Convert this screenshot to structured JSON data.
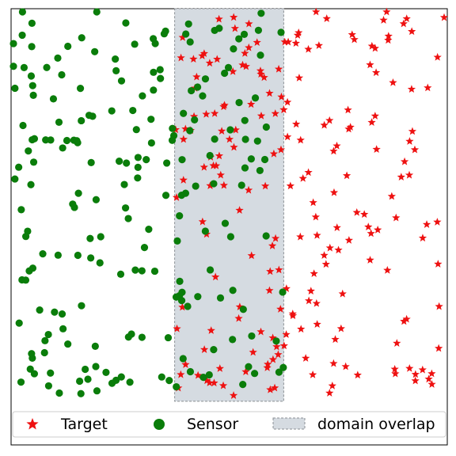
{
  "chart_data": {
    "type": "scatter",
    "title": "",
    "xlabel": "",
    "ylabel": "",
    "xlim": [
      0,
      1
    ],
    "ylim": [
      0,
      1
    ],
    "grid": false,
    "axis_ticks": false,
    "legend_placement": "bottom-center",
    "overlap_region": {
      "x": [
        0.375,
        0.625
      ],
      "y": [
        0.1,
        1.0
      ],
      "name": "domain overlap",
      "fill": "#d5dbe1",
      "edge": "#8a8f94"
    },
    "series": [
      {
        "name": "Target",
        "marker": "star",
        "color": "#ee1111",
        "count": 205,
        "x_range": [
          0.375,
          1.0
        ],
        "y_range": [
          0.11,
          1.0
        ],
        "seed": 91
      },
      {
        "name": "Sensor",
        "marker": "circle",
        "color": "#0a7d0a",
        "count": 205,
        "x_range": [
          0.0,
          0.625
        ],
        "y_range": [
          0.11,
          1.0
        ],
        "seed": 23
      }
    ],
    "legend": [
      {
        "label": "Target",
        "marker": "star",
        "color": "#ee1111"
      },
      {
        "label": "Sensor",
        "marker": "circle",
        "color": "#0a7d0a"
      },
      {
        "label": "domain overlap",
        "marker": "patch",
        "color": "#d5dbe1"
      }
    ]
  }
}
